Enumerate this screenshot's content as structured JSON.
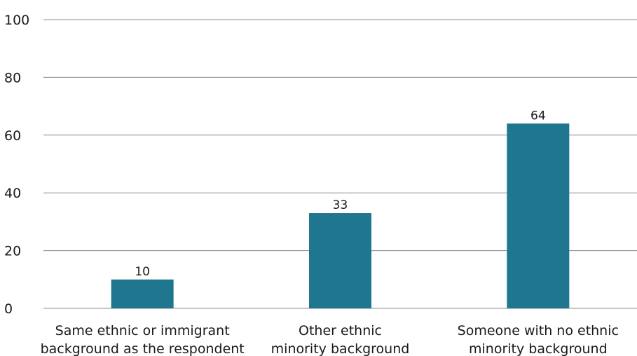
{
  "chart_data": {
    "type": "bar",
    "categories": [
      [
        "Same ethnic or immigrant",
        "background as the respondent"
      ],
      [
        "Other ethnic",
        "minority background"
      ],
      [
        "Someone with no ethnic",
        "minority background"
      ]
    ],
    "values": [
      10,
      33,
      64
    ],
    "ylim": [
      0,
      100
    ],
    "yticks": [
      0,
      20,
      40,
      60,
      80,
      100
    ],
    "grid": true,
    "bar_color": "#1f768f",
    "title": "",
    "xlabel": "",
    "ylabel": ""
  }
}
